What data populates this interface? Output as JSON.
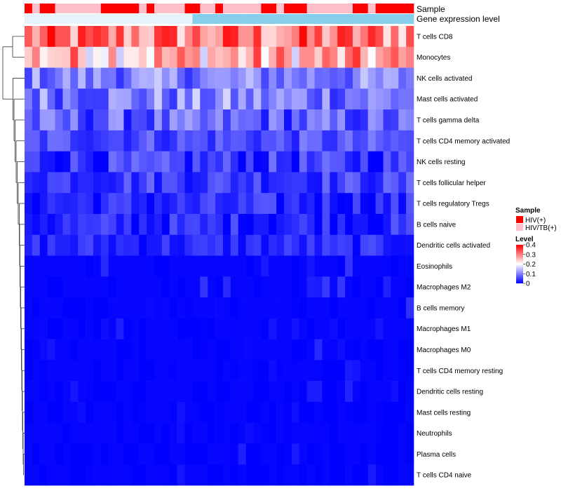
{
  "chart_data": {
    "type": "heatmap",
    "title": "",
    "annotation_tracks": [
      {
        "name": "Sample",
        "label": "Sample"
      },
      {
        "name": "Gene expression level",
        "label": "Gene expression level"
      }
    ],
    "sample_annotation": [
      1,
      0,
      1,
      1,
      0,
      0,
      0,
      0,
      0,
      0,
      1,
      1,
      1,
      1,
      1,
      0,
      1,
      0,
      0,
      0,
      0,
      1,
      1,
      0,
      0,
      1,
      0,
      0,
      0,
      0,
      0,
      1,
      1,
      0,
      1,
      1,
      1,
      0,
      0,
      0,
      0,
      0,
      0,
      1,
      1,
      0,
      1,
      1,
      1,
      1,
      1
    ],
    "expression_annotation": [
      0,
      0,
      0,
      0,
      0,
      0,
      0,
      0,
      0,
      0,
      0,
      0,
      0,
      0,
      0,
      0,
      0,
      0,
      0,
      0,
      0,
      0,
      1,
      1,
      1,
      1,
      1,
      1,
      1,
      1,
      1,
      1,
      1,
      1,
      1,
      1,
      1,
      1,
      1,
      1,
      1,
      1,
      1,
      1,
      1,
      1,
      1,
      1,
      1,
      1,
      1
    ],
    "rows": [
      "T cells CD8",
      "Monocytes",
      "NK cells activated",
      "Mast cells activated",
      "T cells gamma delta",
      "T cells CD4 memory activated",
      "NK cells resting",
      "T cells follicular helper",
      "T cells regulatory  Tregs",
      "B cells naive",
      "Dendritic cells activated",
      "Eosinophils",
      "Macrophages M2",
      "B cells memory",
      "Macrophages M1",
      "Macrophages M0",
      "T cells CD4 memory resting",
      "Dendritic cells resting",
      "Mast cells resting",
      "Neutrophils",
      "Plasma cells",
      "T cells CD4 naive"
    ],
    "row_means": [
      0.3,
      0.26,
      0.1,
      0.1,
      0.07,
      0.06,
      0.04,
      0.05,
      0.03,
      0.03,
      0.03,
      0.02,
      0.02,
      0.02,
      0.01,
      0.01,
      0.01,
      0.01,
      0.005,
      0.005,
      0.01,
      0.005
    ],
    "row_spread": [
      0.1,
      0.1,
      0.06,
      0.07,
      0.06,
      0.04,
      0.05,
      0.04,
      0.04,
      0.04,
      0.03,
      0.03,
      0.03,
      0.03,
      0.02,
      0.03,
      0.02,
      0.02,
      0.01,
      0.01,
      0.03,
      0.02
    ],
    "n_columns": 51,
    "value_range": [
      0,
      0.4
    ],
    "color_scale": {
      "low": "#0000ff",
      "mid": "#ffffff",
      "high": "#ff0000",
      "mid_value": 0.2
    },
    "legend": {
      "sample_title": "Sample",
      "sample_entries": [
        {
          "label": "HIV(+)",
          "color": "#ff0000"
        },
        {
          "label": "HIV/TB(+)",
          "color": "#ffc0cb"
        }
      ],
      "level_title": "Level",
      "level_ticks": [
        {
          "value": 0.4,
          "label": "0.4"
        },
        {
          "value": 0.3,
          "label": "0.3"
        },
        {
          "value": 0.2,
          "label": "0.2"
        },
        {
          "value": 0.1,
          "label": "0.1"
        },
        {
          "value": 0,
          "label": "0"
        }
      ],
      "placement": "right"
    },
    "expression_colors": {
      "low": "#e6f3fb",
      "high": "#87ceeb"
    }
  }
}
